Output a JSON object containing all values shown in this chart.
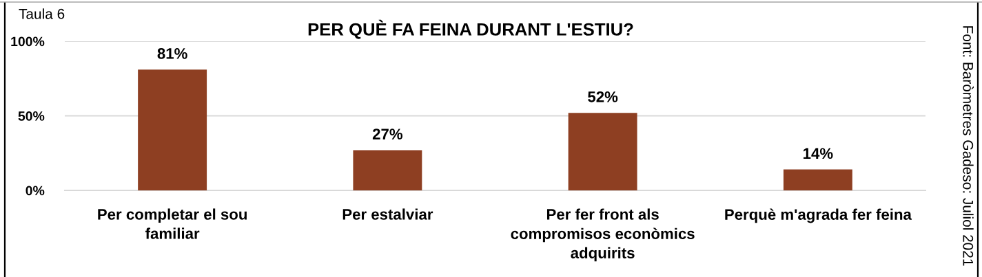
{
  "chart_data": {
    "type": "bar",
    "title": "PER QUÈ FA FEINA DURANT L'ESTIU?",
    "annotations": [
      "Taula 6",
      "Font: Baròmetres Gadeso: Juliol 2021"
    ],
    "categories": [
      "Per completar el sou\nfamiliar",
      "Per estalviar",
      "Per fer front als\ncompromisos econòmics\nadquirits",
      "Perquè m'agrada fer feina"
    ],
    "values": [
      81,
      27,
      52,
      14
    ],
    "color": "#8e3f22",
    "value_labels": [
      "81%",
      "27%",
      "52%",
      "14%"
    ],
    "ylim": [
      0,
      100
    ],
    "yticks": [
      {
        "value": 0,
        "label": "0%"
      },
      {
        "value": 50,
        "label": "50%"
      },
      {
        "value": 100,
        "label": "100%"
      }
    ],
    "grid": "y"
  }
}
